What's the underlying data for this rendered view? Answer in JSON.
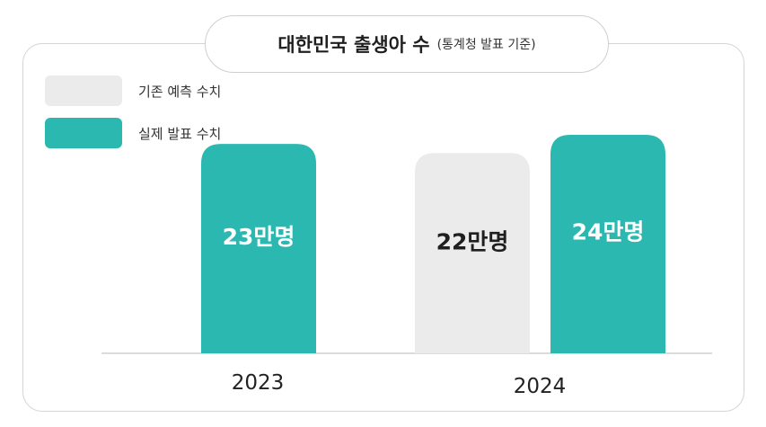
{
  "chart_data": {
    "type": "bar",
    "title": "대한민국 출생아 수",
    "subtitle": "(통계청 발표 기준)",
    "categories": [
      "2023",
      "2024"
    ],
    "series": [
      {
        "name": "기존 예측 수치",
        "color": "#ebebeb",
        "label_color": "#1f1f1f",
        "values": [
          null,
          22
        ],
        "labels": [
          "",
          "22만명"
        ]
      },
      {
        "name": "실제 발표 수치",
        "color": "#2bb8b0",
        "label_color": "#ffffff",
        "values": [
          23,
          24
        ],
        "labels": [
          "23만명",
          "24만명"
        ]
      }
    ],
    "ylim": [
      0,
      24
    ],
    "legend_position": "top-left",
    "grid": false
  }
}
